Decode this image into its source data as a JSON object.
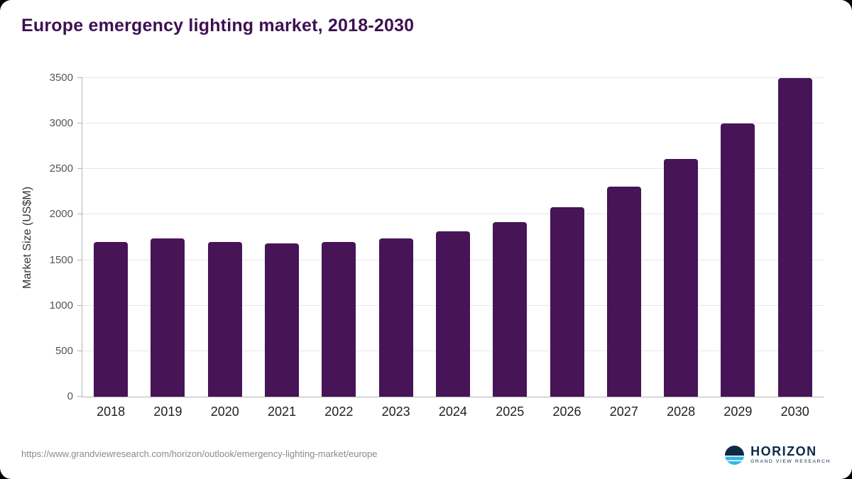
{
  "page": {
    "title": "Europe emergency lighting market, 2018-2030",
    "source_url": "https://www.grandviewresearch.com/horizon/outlook/emergency-lighting-market/europe"
  },
  "logo": {
    "name": "HORIZON",
    "subtitle": "GRAND VIEW RESEARCH"
  },
  "colors": {
    "bar": "#461457",
    "title": "#3d1152",
    "grid": "#e7e7e7",
    "axis": "#b3b3b3",
    "tick_label": "#555555",
    "x_label": "#1f1f1f",
    "logo_navy": "#0e2a47",
    "logo_cyan": "#35b6e9"
  },
  "chart_data": {
    "type": "bar",
    "title": "Europe emergency lighting market, 2018-2030",
    "categories": [
      "2018",
      "2019",
      "2020",
      "2021",
      "2022",
      "2023",
      "2024",
      "2025",
      "2026",
      "2027",
      "2028",
      "2029",
      "2030"
    ],
    "values": [
      1700,
      1740,
      1700,
      1680,
      1700,
      1740,
      1820,
      1920,
      2080,
      2310,
      2610,
      3000,
      3500
    ],
    "xlabel": "",
    "ylabel": "Market Size (US$M)",
    "ylim": [
      0,
      3500
    ],
    "yticks": [
      0,
      500,
      1000,
      1500,
      2000,
      2500,
      3000,
      3500
    ],
    "grid": "horizontal",
    "legend": "none",
    "bar_color": "#461457"
  }
}
